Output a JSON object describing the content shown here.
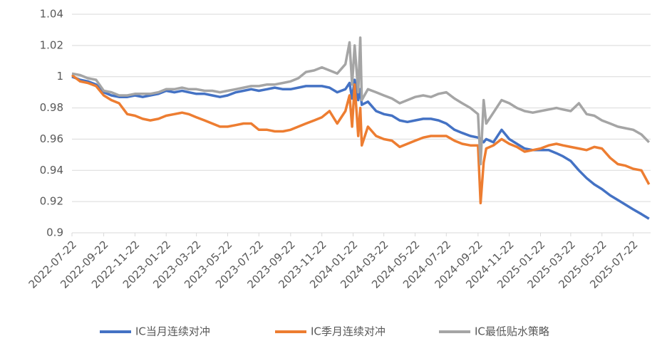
{
  "chart_data": {
    "type": "line",
    "x": [
      "2022-07-22",
      "2022-08-07",
      "2022-08-22",
      "2022-09-07",
      "2022-09-22",
      "2022-10-07",
      "2022-10-22",
      "2022-11-07",
      "2022-11-22",
      "2022-12-07",
      "2022-12-22",
      "2023-01-07",
      "2023-01-22",
      "2023-02-07",
      "2023-02-22",
      "2023-03-07",
      "2023-03-22",
      "2023-04-07",
      "2023-04-22",
      "2023-05-07",
      "2023-05-22",
      "2023-06-07",
      "2023-06-22",
      "2023-07-07",
      "2023-07-22",
      "2023-08-07",
      "2023-08-22",
      "2023-09-07",
      "2023-09-22",
      "2023-10-07",
      "2023-10-22",
      "2023-11-07",
      "2023-11-22",
      "2023-12-07",
      "2023-12-22",
      "2024-01-07",
      "2024-01-15",
      "2024-01-20",
      "2024-01-25",
      "2024-02-01",
      "2024-02-05",
      "2024-02-08",
      "2024-02-20",
      "2024-03-07",
      "2024-03-22",
      "2024-04-07",
      "2024-04-22",
      "2024-05-07",
      "2024-05-22",
      "2024-06-07",
      "2024-06-22",
      "2024-07-07",
      "2024-07-22",
      "2024-08-07",
      "2024-08-22",
      "2024-09-07",
      "2024-09-22",
      "2024-09-27",
      "2024-10-03",
      "2024-10-08",
      "2024-10-22",
      "2024-11-07",
      "2024-11-22",
      "2024-12-07",
      "2024-12-22",
      "2025-01-07",
      "2025-01-22",
      "2025-02-07",
      "2025-02-22",
      "2025-03-07",
      "2025-03-22",
      "2025-04-07",
      "2025-04-22",
      "2025-05-07",
      "2025-05-22",
      "2025-06-07",
      "2025-06-22",
      "2025-07-07",
      "2025-07-22",
      "2025-08-07",
      "2025-08-22"
    ],
    "series": [
      {
        "name": "IC当月连续对冲",
        "color": "#4472c4",
        "values": [
          1.0,
          0.998,
          0.997,
          0.995,
          0.99,
          0.988,
          0.987,
          0.987,
          0.988,
          0.987,
          0.988,
          0.989,
          0.991,
          0.99,
          0.991,
          0.99,
          0.989,
          0.989,
          0.988,
          0.987,
          0.988,
          0.99,
          0.991,
          0.992,
          0.991,
          0.992,
          0.993,
          0.992,
          0.992,
          0.993,
          0.994,
          0.994,
          0.994,
          0.993,
          0.99,
          0.992,
          0.996,
          0.986,
          0.998,
          0.985,
          0.992,
          0.982,
          0.984,
          0.978,
          0.976,
          0.975,
          0.972,
          0.971,
          0.972,
          0.973,
          0.973,
          0.972,
          0.97,
          0.966,
          0.964,
          0.962,
          0.961,
          0.96,
          0.958,
          0.96,
          0.958,
          0.966,
          0.96,
          0.957,
          0.954,
          0.953,
          0.953,
          0.953,
          0.951,
          0.949,
          0.946,
          0.94,
          0.935,
          0.931,
          0.928,
          0.924,
          0.921,
          0.918,
          0.915,
          0.912,
          0.909
        ]
      },
      {
        "name": "IC季月连续对冲",
        "color": "#ed7d31",
        "values": [
          1.001,
          0.997,
          0.996,
          0.994,
          0.988,
          0.985,
          0.983,
          0.976,
          0.975,
          0.973,
          0.972,
          0.973,
          0.975,
          0.976,
          0.977,
          0.976,
          0.974,
          0.972,
          0.97,
          0.968,
          0.968,
          0.969,
          0.97,
          0.97,
          0.966,
          0.966,
          0.965,
          0.965,
          0.966,
          0.968,
          0.97,
          0.972,
          0.974,
          0.978,
          0.97,
          0.978,
          0.988,
          0.968,
          0.995,
          0.962,
          0.98,
          0.956,
          0.968,
          0.962,
          0.96,
          0.959,
          0.955,
          0.957,
          0.959,
          0.961,
          0.962,
          0.962,
          0.962,
          0.959,
          0.957,
          0.956,
          0.956,
          0.919,
          0.945,
          0.954,
          0.956,
          0.96,
          0.957,
          0.955,
          0.952,
          0.953,
          0.954,
          0.956,
          0.957,
          0.956,
          0.955,
          0.954,
          0.953,
          0.955,
          0.954,
          0.948,
          0.944,
          0.943,
          0.941,
          0.94,
          0.931
        ]
      },
      {
        "name": "IC最低贴水策略",
        "color": "#a5a5a5",
        "values": [
          1.002,
          1.001,
          0.999,
          0.998,
          0.991,
          0.99,
          0.988,
          0.988,
          0.989,
          0.989,
          0.989,
          0.99,
          0.992,
          0.992,
          0.993,
          0.992,
          0.992,
          0.991,
          0.991,
          0.99,
          0.991,
          0.992,
          0.993,
          0.994,
          0.994,
          0.995,
          0.995,
          0.996,
          0.997,
          0.999,
          1.003,
          1.004,
          1.006,
          1.004,
          1.002,
          1.008,
          1.022,
          0.995,
          1.02,
          0.99,
          1.025,
          0.985,
          0.992,
          0.99,
          0.988,
          0.986,
          0.983,
          0.985,
          0.987,
          0.988,
          0.987,
          0.989,
          0.99,
          0.986,
          0.983,
          0.98,
          0.976,
          0.944,
          0.985,
          0.97,
          0.977,
          0.985,
          0.983,
          0.98,
          0.978,
          0.977,
          0.978,
          0.979,
          0.98,
          0.979,
          0.978,
          0.983,
          0.976,
          0.975,
          0.972,
          0.97,
          0.968,
          0.967,
          0.966,
          0.963,
          0.958
        ]
      }
    ],
    "xlim": [
      "2022-07-22",
      "2025-08-25"
    ],
    "xticks": [
      "2022-07-22",
      "2022-09-22",
      "2022-11-22",
      "2023-01-22",
      "2023-03-22",
      "2023-05-22",
      "2023-07-22",
      "2023-09-22",
      "2023-11-22",
      "2024-01-22",
      "2024-03-22",
      "2024-05-22",
      "2024-07-22",
      "2024-09-22",
      "2024-11-22",
      "2025-01-22",
      "2025-03-22",
      "2025-05-22",
      "2025-07-22"
    ],
    "ylim": [
      0.9,
      1.04
    ],
    "yticks": [
      0.9,
      0.92,
      0.94,
      0.96,
      0.98,
      1,
      1.02,
      1.04
    ],
    "grid": true,
    "legend": "bottom"
  }
}
